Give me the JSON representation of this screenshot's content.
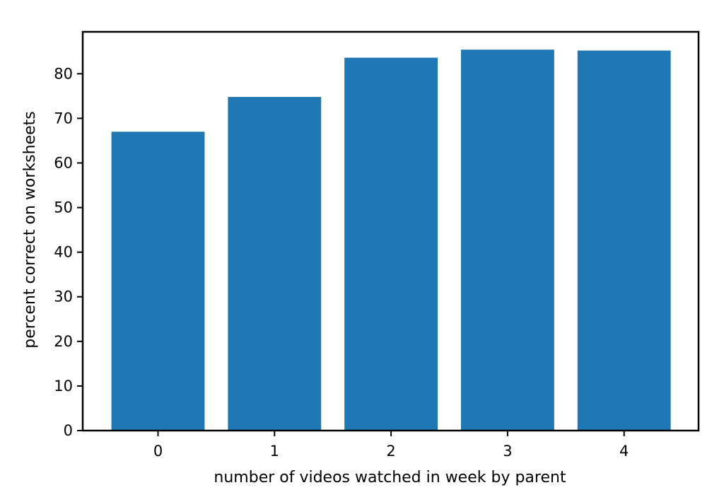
{
  "chart_data": {
    "type": "bar",
    "categories": [
      "0",
      "1",
      "2",
      "3",
      "4"
    ],
    "values": [
      67.0,
      74.8,
      83.6,
      85.4,
      85.2
    ],
    "title": "",
    "xlabel": "number of videos watched in week by parent",
    "ylabel": "percent correct on worksheets",
    "ylim": [
      0,
      89.4
    ],
    "yticks": [
      "0",
      "10",
      "20",
      "30",
      "40",
      "50",
      "60",
      "70",
      "80"
    ],
    "bar_color": "#1f77b4",
    "grid": false,
    "legend": "none"
  }
}
